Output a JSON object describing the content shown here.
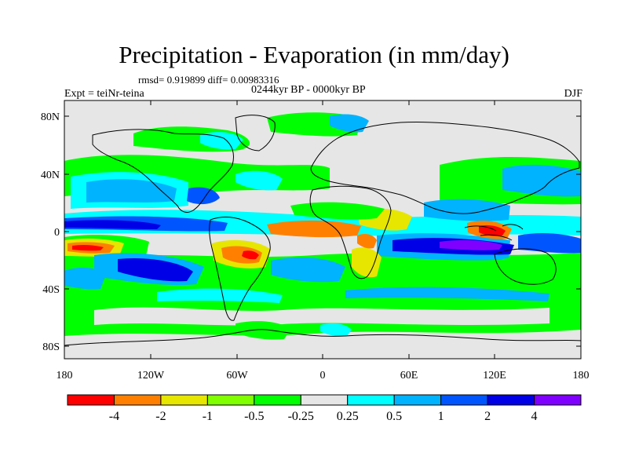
{
  "title": "Precipitation - Evaporation (in mm/day)",
  "stats": "rmsd= 0.919899 diff= 0.00983316",
  "period": "0244kyr BP - 0000kyr BP",
  "experiment": "Expt = teiNr-teina",
  "season": "DJF",
  "map": {
    "projection": "cylindrical equidistant",
    "background_color": "#e6e6e6",
    "lat_ticks": [
      "80N",
      "40N",
      "0",
      "40S",
      "80S"
    ],
    "lon_ticks": [
      "180",
      "120W",
      "60W",
      "0",
      "60E",
      "120E",
      "180"
    ]
  },
  "colorbar": {
    "colors": [
      "#ff0000",
      "#ff8000",
      "#e6e600",
      "#80ff00",
      "#00ff00",
      "#e6e6e6",
      "#00ffff",
      "#00b3ff",
      "#0055ff",
      "#0000e6",
      "#8000ff"
    ],
    "labels": [
      "-4",
      "-2",
      "-1",
      "-0.5",
      "-0.25",
      "0.25",
      "0.5",
      "1",
      "2",
      "4"
    ]
  }
}
